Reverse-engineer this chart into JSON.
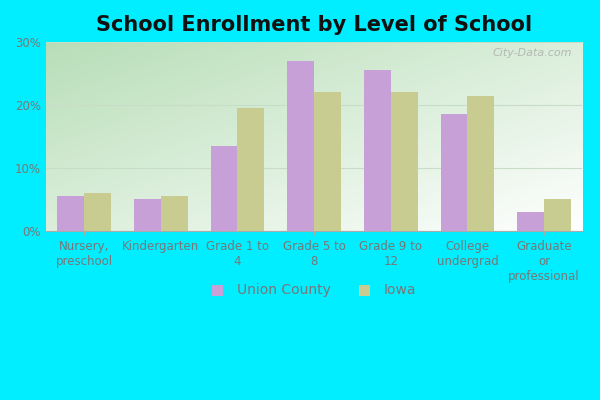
{
  "title": "School Enrollment by Level of School",
  "categories": [
    "Nursery,\npreschool",
    "Kindergarten",
    "Grade 1 to\n4",
    "Grade 5 to\n8",
    "Grade 9 to\n12",
    "College\nundergrad",
    "Graduate\nor\nprofessional"
  ],
  "union_county": [
    5.5,
    5.0,
    13.5,
    27.0,
    25.5,
    18.5,
    3.0
  ],
  "iowa": [
    6.0,
    5.5,
    19.5,
    22.0,
    22.0,
    21.5,
    5.0
  ],
  "union_county_color": "#c8a0d8",
  "iowa_color": "#c8cc90",
  "union_county_label": "Union County",
  "iowa_label": "Iowa",
  "ylim": [
    0,
    30
  ],
  "yticks": [
    0,
    10,
    20,
    30
  ],
  "ytick_labels": [
    "0%",
    "10%",
    "20%",
    "30%"
  ],
  "outer_bg": "#00eeff",
  "plot_bg_topleft": "#b0ddc0",
  "plot_bg_bottomright": "#f0fff0",
  "title_fontsize": 15,
  "tick_fontsize": 8.5,
  "legend_fontsize": 10,
  "bar_width": 0.35,
  "watermark": "City-Data.com",
  "grid_color": "#c8ddc8",
  "spine_color": "#aaaaaa",
  "text_color": "#777777"
}
